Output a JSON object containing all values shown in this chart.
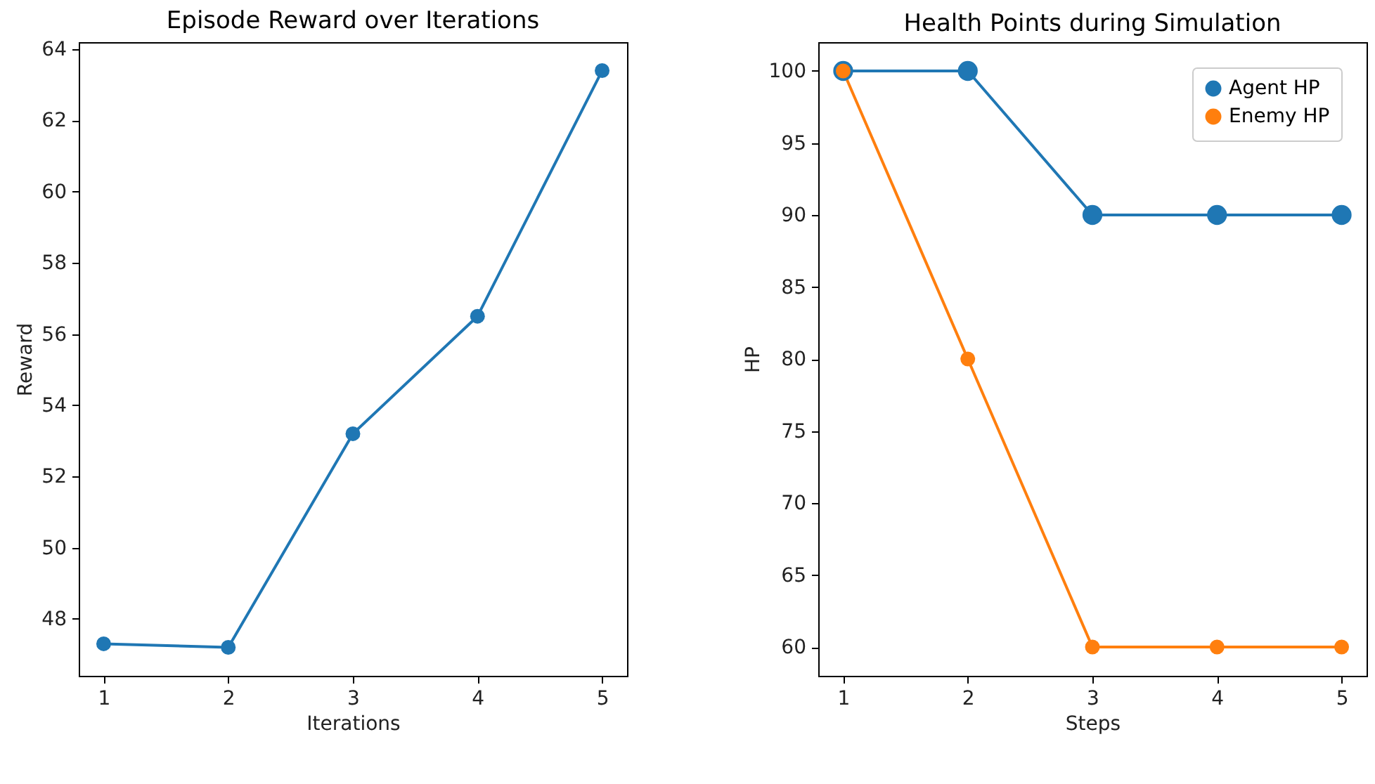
{
  "chart_data": [
    {
      "type": "line",
      "title": "Episode Reward over Iterations",
      "xlabel": "Iterations",
      "ylabel": "Reward",
      "x": [
        1,
        2,
        3,
        4,
        5
      ],
      "xlim": [
        0.8,
        5.2
      ],
      "xticks": [
        1,
        2,
        3,
        4,
        5
      ],
      "ylim": [
        46.4,
        64.2
      ],
      "yticks": [
        48,
        50,
        52,
        54,
        56,
        58,
        60,
        62,
        64
      ],
      "grid": false,
      "legend": false,
      "marker": "circle",
      "line_style": "solid",
      "series": [
        {
          "color": "#1f77b4",
          "values": [
            47.3,
            47.2,
            53.2,
            56.5,
            63.4
          ]
        }
      ]
    },
    {
      "type": "line",
      "title": "Health Points during Simulation",
      "xlabel": "Steps",
      "ylabel": "HP",
      "x": [
        1,
        2,
        3,
        4,
        5
      ],
      "xlim": [
        0.8,
        5.2
      ],
      "xticks": [
        1,
        2,
        3,
        4,
        5
      ],
      "ylim": [
        58,
        102
      ],
      "yticks": [
        60,
        65,
        70,
        75,
        80,
        85,
        90,
        95,
        100
      ],
      "grid": false,
      "legend": "top right",
      "marker": "circle",
      "line_style": "solid",
      "series": [
        {
          "name": "Agent HP",
          "color": "#1f77b4",
          "values": [
            100,
            100,
            90,
            90,
            90
          ]
        },
        {
          "name": "Enemy HP",
          "color": "#ff7f0e",
          "values": [
            100,
            80,
            60,
            60,
            60
          ]
        }
      ]
    }
  ]
}
